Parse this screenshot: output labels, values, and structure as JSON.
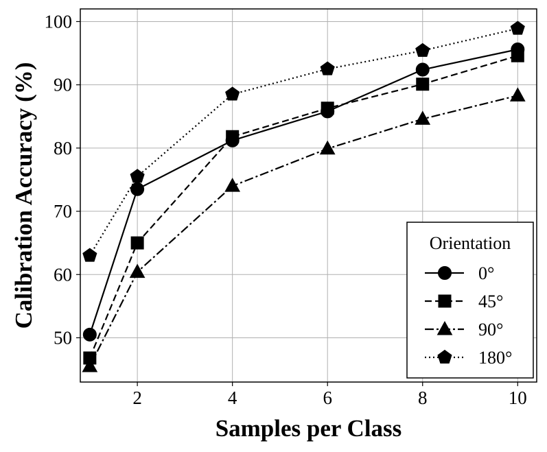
{
  "chart_data": {
    "type": "line",
    "title": "",
    "xlabel": "Samples per Class",
    "ylabel": "Calibration Accuracy (%)",
    "x": [
      1,
      2,
      4,
      6,
      8,
      10
    ],
    "x_categories": [
      "1",
      "2",
      "4",
      "6",
      "8",
      "10"
    ],
    "x_tick_labels": [
      "2",
      "4",
      "6",
      "8",
      "10"
    ],
    "y_ticks": [
      50,
      60,
      70,
      80,
      90,
      100
    ],
    "ylim": [
      43,
      102
    ],
    "grid": true,
    "legend": {
      "title": "Orientation",
      "position": "lower-right"
    },
    "series": [
      {
        "name": "0°",
        "marker": "circle",
        "linestyle": "solid",
        "values": [
          50.5,
          73.5,
          81.2,
          85.8,
          92.4,
          95.6
        ]
      },
      {
        "name": "45°",
        "marker": "square",
        "linestyle": "dashed",
        "values": [
          46.8,
          65.0,
          81.8,
          86.3,
          90.1,
          94.6
        ]
      },
      {
        "name": "90°",
        "marker": "triangle",
        "linestyle": "dashdot",
        "values": [
          45.5,
          60.4,
          74.0,
          79.9,
          84.6,
          88.3
        ]
      },
      {
        "name": "180°",
        "marker": "pentagon",
        "linestyle": "dotted",
        "values": [
          63.0,
          75.5,
          88.5,
          92.5,
          95.4,
          98.9
        ]
      }
    ]
  },
  "colors": {
    "line": "#000000",
    "grid": "#b0b0b0",
    "background": "#ffffff"
  }
}
